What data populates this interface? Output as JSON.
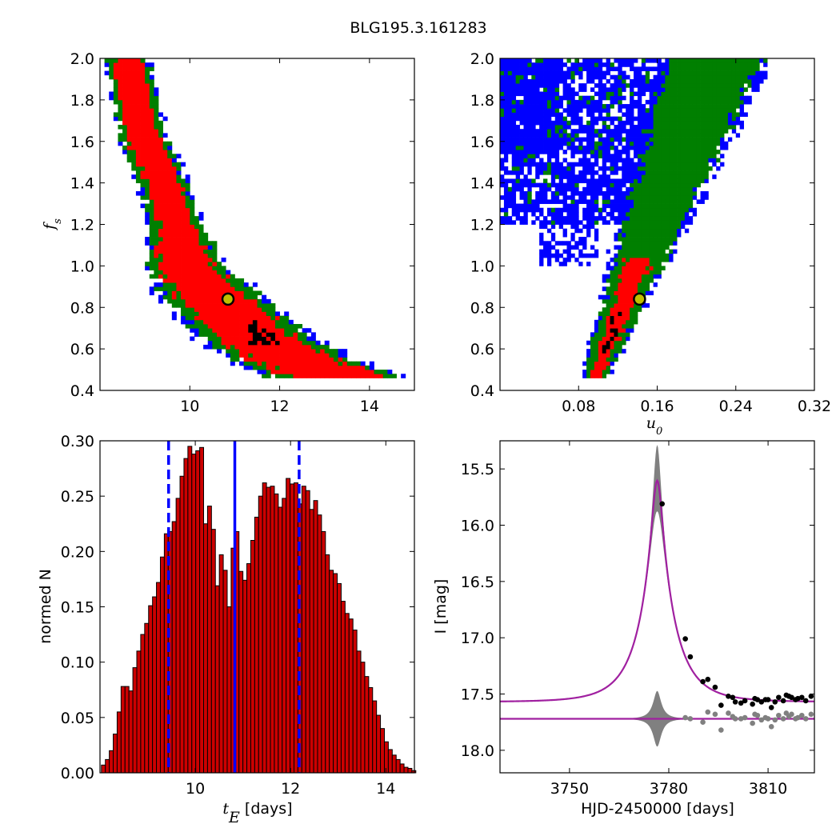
{
  "figure_title": "BLG195.3.161283",
  "colors": {
    "blue": "#0000ff",
    "green": "#007f00",
    "red": "#ff0000",
    "black": "#000000",
    "bar": "#cc0000",
    "model": "#a020a0",
    "band": "#808080",
    "marker": "#bfbf00"
  },
  "chart_data": [
    {
      "id": "tE_fs",
      "type": "heatmap",
      "xlabel": "",
      "ylabel": "f_s",
      "xlim": [
        8.0,
        15.0
      ],
      "ylim": [
        0.4,
        2.0
      ],
      "xticks": [
        "10",
        "12",
        "14"
      ],
      "xtick_values": [
        10,
        12,
        14
      ],
      "yticks": [
        "0.4",
        "0.6",
        "0.8",
        "1.0",
        "1.2",
        "1.4",
        "1.6",
        "1.8",
        "2.0"
      ],
      "ytick_values": [
        0.4,
        0.6,
        0.8,
        1.0,
        1.2,
        1.4,
        1.6,
        1.8,
        2.0
      ],
      "levels": [
        "blue",
        "green",
        "red",
        "black"
      ],
      "best_fit": {
        "x": 10.85,
        "y": 0.84
      }
    },
    {
      "id": "u0_fs",
      "type": "heatmap",
      "xlabel": "u_0",
      "ylabel": "",
      "xlim": [
        0.0,
        0.32
      ],
      "ylim": [
        0.4,
        2.0
      ],
      "xticks": [
        "0.08",
        "0.16",
        "0.24",
        "0.32"
      ],
      "xtick_values": [
        0.08,
        0.16,
        0.24,
        0.32
      ],
      "yticks": [
        "0.4",
        "0.6",
        "0.8",
        "1.0",
        "1.2",
        "1.4",
        "1.6",
        "1.8",
        "2.0"
      ],
      "ytick_values": [
        0.4,
        0.6,
        0.8,
        1.0,
        1.2,
        1.4,
        1.6,
        1.8,
        2.0
      ],
      "levels": [
        "blue",
        "green",
        "red",
        "black"
      ],
      "best_fit": {
        "x": 0.142,
        "y": 0.84
      }
    },
    {
      "id": "tE_hist",
      "type": "bar",
      "xlabel": "t_E",
      "xlabel_suffix": "[days]",
      "ylabel": "normed N",
      "xlim": [
        8.0,
        14.6
      ],
      "ylim": [
        0.0,
        0.3
      ],
      "xticks": [
        "10",
        "12",
        "14"
      ],
      "xtick_values": [
        10,
        12,
        14
      ],
      "yticks": [
        "0.00",
        "0.05",
        "0.10",
        "0.15",
        "0.20",
        "0.25",
        "0.30"
      ],
      "ytick_values": [
        0.0,
        0.05,
        0.1,
        0.15,
        0.2,
        0.25,
        0.3
      ],
      "bin_start": 8.03,
      "bin_width": 0.0825,
      "values": [
        0.007,
        0.012,
        0.02,
        0.035,
        0.055,
        0.078,
        0.078,
        0.074,
        0.095,
        0.11,
        0.125,
        0.135,
        0.151,
        0.159,
        0.172,
        0.195,
        0.216,
        0.218,
        0.227,
        0.248,
        0.268,
        0.284,
        0.295,
        0.288,
        0.291,
        0.294,
        0.225,
        0.241,
        0.22,
        0.169,
        0.197,
        0.183,
        0.15,
        0.203,
        0.218,
        0.182,
        0.174,
        0.189,
        0.21,
        0.231,
        0.25,
        0.262,
        0.258,
        0.259,
        0.252,
        0.24,
        0.248,
        0.266,
        0.261,
        0.262,
        0.243,
        0.259,
        0.255,
        0.238,
        0.246,
        0.233,
        0.218,
        0.197,
        0.183,
        0.18,
        0.171,
        0.155,
        0.144,
        0.139,
        0.129,
        0.11,
        0.1,
        0.087,
        0.077,
        0.065,
        0.052,
        0.04,
        0.028,
        0.021,
        0.016,
        0.012,
        0.008,
        0.005,
        0.004,
        0.002
      ],
      "median": 10.83,
      "interval": [
        9.44,
        12.18
      ]
    },
    {
      "id": "lightcurve",
      "type": "line",
      "xlabel": "HJD-2450000 [days]",
      "ylabel": "I [mag]",
      "xlim": [
        3729,
        3824
      ],
      "ylim": [
        18.2,
        15.25
      ],
      "xticks": [
        "3750",
        "3780",
        "3810"
      ],
      "xtick_values": [
        3750,
        3780,
        3810
      ],
      "yticks": [
        "15.5",
        "16.0",
        "16.5",
        "17.0",
        "17.5",
        "18.0"
      ],
      "ytick_values": [
        15.5,
        16.0,
        16.5,
        17.0,
        17.5,
        18.0
      ],
      "model": {
        "t0": 3776.5,
        "tE": 10.8,
        "u0": 0.142,
        "fs": 0.84,
        "baseline": 17.57
      },
      "offset_baseline": 17.72,
      "data": [
        {
          "x": 3778.0,
          "y": 15.81
        },
        {
          "x": 3785.0,
          "y": 17.01
        },
        {
          "x": 3786.5,
          "y": 17.17
        },
        {
          "x": 3790.3,
          "y": 17.39
        },
        {
          "x": 3791.8,
          "y": 17.37
        },
        {
          "x": 3794.0,
          "y": 17.44
        },
        {
          "x": 3795.8,
          "y": 17.6
        },
        {
          "x": 3798.0,
          "y": 17.52
        },
        {
          "x": 3799.3,
          "y": 17.53
        },
        {
          "x": 3800.1,
          "y": 17.57
        },
        {
          "x": 3801.8,
          "y": 17.58
        },
        {
          "x": 3803.0,
          "y": 17.56
        },
        {
          "x": 3805.3,
          "y": 17.59
        },
        {
          "x": 3806.0,
          "y": 17.54
        },
        {
          "x": 3806.8,
          "y": 17.55
        },
        {
          "x": 3808.0,
          "y": 17.57
        },
        {
          "x": 3809.2,
          "y": 17.55
        },
        {
          "x": 3810.0,
          "y": 17.55
        },
        {
          "x": 3811.0,
          "y": 17.62
        },
        {
          "x": 3812.1,
          "y": 17.57
        },
        {
          "x": 3813.2,
          "y": 17.53
        },
        {
          "x": 3814.6,
          "y": 17.56
        },
        {
          "x": 3815.5,
          "y": 17.51
        },
        {
          "x": 3816.3,
          "y": 17.52
        },
        {
          "x": 3817.1,
          "y": 17.53
        },
        {
          "x": 3818.3,
          "y": 17.55
        },
        {
          "x": 3819.0,
          "y": 17.54
        },
        {
          "x": 3820.2,
          "y": 17.53
        },
        {
          "x": 3821.4,
          "y": 17.56
        },
        {
          "x": 3823.0,
          "y": 17.52
        }
      ],
      "residuals": [
        {
          "x": 3785.0,
          "y": 17.71
        },
        {
          "x": 3786.5,
          "y": 17.72
        },
        {
          "x": 3790.3,
          "y": 17.75
        },
        {
          "x": 3791.8,
          "y": 17.66
        },
        {
          "x": 3794.0,
          "y": 17.68
        },
        {
          "x": 3795.8,
          "y": 17.82
        },
        {
          "x": 3798.0,
          "y": 17.67
        },
        {
          "x": 3799.3,
          "y": 17.7
        },
        {
          "x": 3800.1,
          "y": 17.72
        },
        {
          "x": 3801.8,
          "y": 17.72
        },
        {
          "x": 3803.0,
          "y": 17.71
        },
        {
          "x": 3805.3,
          "y": 17.76
        },
        {
          "x": 3806.0,
          "y": 17.68
        },
        {
          "x": 3806.8,
          "y": 17.69
        },
        {
          "x": 3808.0,
          "y": 17.73
        },
        {
          "x": 3809.2,
          "y": 17.71
        },
        {
          "x": 3810.0,
          "y": 17.72
        },
        {
          "x": 3811.0,
          "y": 17.79
        },
        {
          "x": 3812.1,
          "y": 17.73
        },
        {
          "x": 3813.2,
          "y": 17.69
        },
        {
          "x": 3814.6,
          "y": 17.72
        },
        {
          "x": 3815.5,
          "y": 17.67
        },
        {
          "x": 3816.3,
          "y": 17.7
        },
        {
          "x": 3817.1,
          "y": 17.68
        },
        {
          "x": 3818.3,
          "y": 17.72
        },
        {
          "x": 3819.0,
          "y": 17.71
        },
        {
          "x": 3820.2,
          "y": 17.69
        },
        {
          "x": 3821.4,
          "y": 17.72
        },
        {
          "x": 3823.0,
          "y": 17.68
        }
      ]
    }
  ]
}
